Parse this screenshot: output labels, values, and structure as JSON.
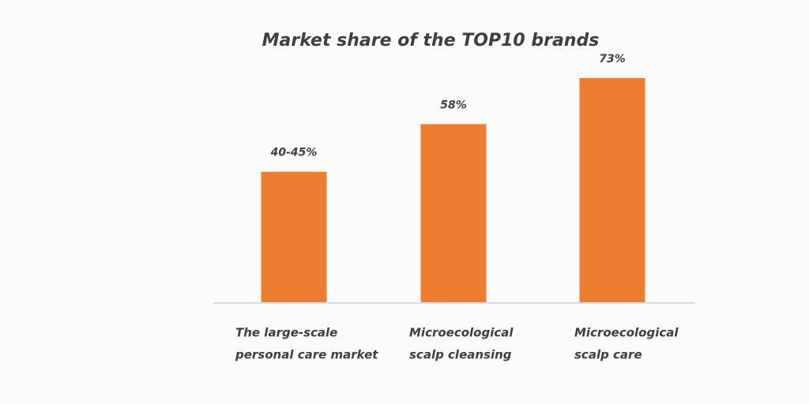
{
  "chart_data": {
    "type": "bar",
    "title": "Market share of the TOP10 brands",
    "categories": [
      [
        "The large-scale",
        "personal care market"
      ],
      [
        "Microecological",
        "scalp cleansing"
      ],
      [
        "Microecological",
        "scalp care"
      ]
    ],
    "values": [
      42.5,
      58,
      73
    ],
    "value_labels": [
      "40-45%",
      "58%",
      "73%"
    ],
    "color": "#ed7d31"
  }
}
